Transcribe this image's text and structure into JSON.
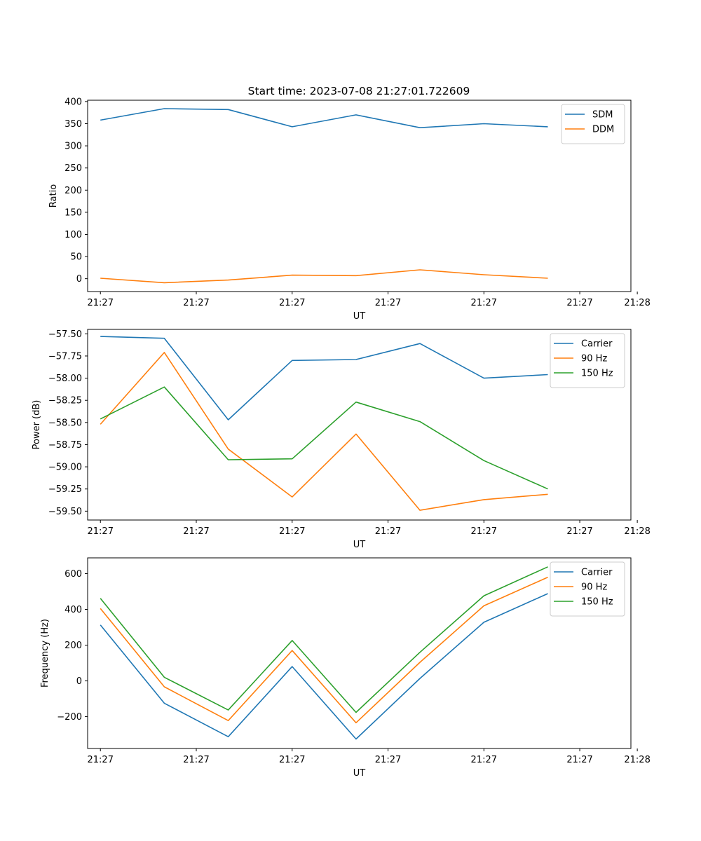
{
  "figure": {
    "title": "Start time: 2023-07-08 21:27:01.722609"
  },
  "colors": {
    "c0": "#1f77b4",
    "c1": "#ff7f0e",
    "c2": "#2ca02c"
  },
  "chart_data": [
    {
      "type": "line",
      "title": "",
      "xlabel": "UT",
      "ylabel": "Ratio",
      "x": [
        1,
        2,
        3,
        4,
        5,
        6,
        7,
        8
      ],
      "xlim": [
        0.8,
        9.3
      ],
      "xticks": [
        1.0,
        2.5,
        4.0,
        5.5,
        7.0,
        8.5,
        9.4
      ],
      "xticklabels": [
        "21:27",
        "21:27",
        "21:27",
        "21:27",
        "21:27",
        "21:27",
        "21:28"
      ],
      "ylim": [
        -29,
        403
      ],
      "yticks": [
        0,
        50,
        100,
        150,
        200,
        250,
        300,
        350,
        400
      ],
      "yticklabels": [
        "0",
        "50",
        "100",
        "150",
        "200",
        "250",
        "300",
        "350",
        "400"
      ],
      "legend": "top-right",
      "series": [
        {
          "name": "SDM",
          "color": "#1f77b4",
          "values": [
            358,
            384,
            382,
            343,
            370,
            341,
            350,
            343
          ]
        },
        {
          "name": "DDM",
          "color": "#ff7f0e",
          "values": [
            1,
            -9,
            -3,
            8,
            7,
            20,
            9,
            1
          ]
        }
      ]
    },
    {
      "type": "line",
      "title": "",
      "xlabel": "UT",
      "ylabel": "Power (dB)",
      "x": [
        1,
        2,
        3,
        4,
        5,
        6,
        7,
        8
      ],
      "xlim": [
        0.8,
        9.3
      ],
      "xticks": [
        1.0,
        2.5,
        4.0,
        5.5,
        7.0,
        8.5,
        9.4
      ],
      "xticklabels": [
        "21:27",
        "21:27",
        "21:27",
        "21:27",
        "21:27",
        "21:27",
        "21:28"
      ],
      "ylim": [
        -59.6,
        -57.45
      ],
      "yticks": [
        -57.5,
        -57.75,
        -58.0,
        -58.25,
        -58.5,
        -58.75,
        -59.0,
        -59.25,
        -59.5
      ],
      "yticklabels": [
        "−57.50",
        "−57.75",
        "−58.00",
        "−58.25",
        "−58.50",
        "−58.75",
        "−59.00",
        "−59.25",
        "−59.50"
      ],
      "legend": "top-right",
      "series": [
        {
          "name": "Carrier",
          "color": "#1f77b4",
          "values": [
            -57.53,
            -57.55,
            -58.47,
            -57.8,
            -57.79,
            -57.61,
            -58.0,
            -57.96
          ]
        },
        {
          "name": "90 Hz",
          "color": "#ff7f0e",
          "values": [
            -58.52,
            -57.71,
            -58.8,
            -59.34,
            -58.63,
            -59.49,
            -59.37,
            -59.31
          ]
        },
        {
          "name": "150 Hz",
          "color": "#2ca02c",
          "values": [
            -58.46,
            -58.1,
            -58.92,
            -58.91,
            -58.27,
            -58.49,
            -58.93,
            -59.25
          ]
        }
      ]
    },
    {
      "type": "line",
      "title": "",
      "xlabel": "UT",
      "ylabel": "Frequency (Hz)",
      "x": [
        1,
        2,
        3,
        4,
        5,
        6,
        7,
        8
      ],
      "xlim": [
        0.8,
        9.3
      ],
      "xticks": [
        1.0,
        2.5,
        4.0,
        5.5,
        7.0,
        8.5,
        9.4
      ],
      "xticklabels": [
        "21:27",
        "21:27",
        "21:27",
        "21:27",
        "21:27",
        "21:27",
        "21:28"
      ],
      "ylim": [
        -378,
        688
      ],
      "yticks": [
        -200,
        0,
        200,
        400,
        600
      ],
      "yticklabels": [
        "−200",
        "0",
        "200",
        "400",
        "600"
      ],
      "legend": "top-right",
      "series": [
        {
          "name": "Carrier",
          "color": "#1f77b4",
          "values": [
            313,
            -125,
            -312,
            80,
            -325,
            14,
            328,
            488
          ]
        },
        {
          "name": "90 Hz",
          "color": "#ff7f0e",
          "values": [
            405,
            -33,
            -222,
            170,
            -234,
            104,
            420,
            580
          ]
        },
        {
          "name": "150 Hz",
          "color": "#2ca02c",
          "values": [
            462,
            20,
            -163,
            226,
            -176,
            160,
            476,
            638
          ]
        }
      ]
    }
  ]
}
